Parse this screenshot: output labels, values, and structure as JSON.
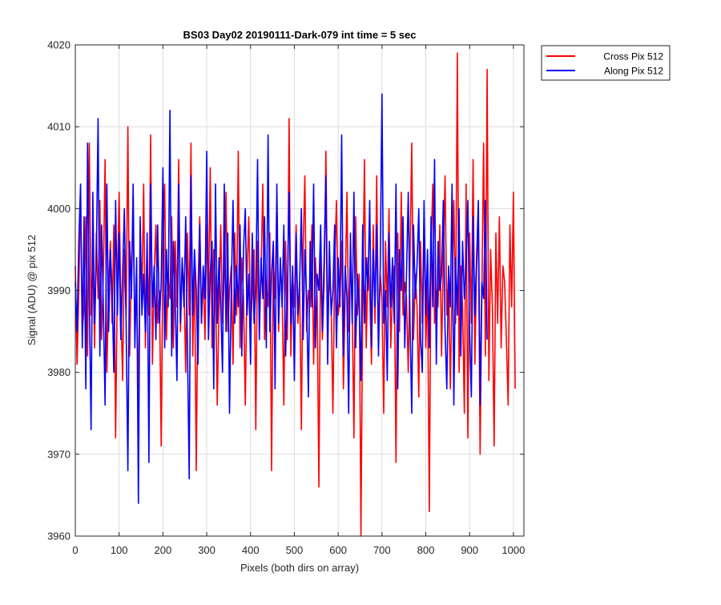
{
  "chart_data": {
    "type": "line",
    "title": "BS03 Day02 20190111-Dark-079 int time = 5 sec",
    "xlabel": "Pixels (both dirs on array)",
    "ylabel": "Signal (ADU) @ pix 512",
    "xlim": [
      0,
      1024
    ],
    "ylim": [
      3960,
      4020
    ],
    "xticks": [
      0,
      100,
      200,
      300,
      400,
      500,
      600,
      700,
      800,
      900,
      1000
    ],
    "yticks": [
      3960,
      3970,
      3980,
      3990,
      4000,
      4010,
      4020
    ],
    "grid": true,
    "legend": {
      "placement": "outside-top-right"
    },
    "colors": {
      "axes": "#262626",
      "grid": "#dcdcdc"
    },
    "series": [
      {
        "name": "Cross Pix 512",
        "color": "#ff0000",
        "step": 4,
        "values": [
          3993,
          3981,
          3990,
          4002,
          3985,
          3988,
          3999,
          3982,
          4008,
          3987,
          3994,
          3983,
          3997,
          3989,
          4001,
          3984,
          3992,
          4006,
          3980,
          3990,
          3996,
          3986,
          3998,
          3972,
          3991,
          4002,
          3988,
          3979,
          3995,
          3987,
          4010,
          3982,
          3993,
          3999,
          3985,
          3990,
          3976,
          3997,
          3989,
          4003,
          3983,
          3994,
          3987,
          4009,
          3981,
          3992,
          3998,
          3986,
          3990,
          3971,
          3995,
          4003,
          3984,
          3992,
          3989,
          3999,
          3983,
          3996,
          3988,
          4006,
          3985,
          3993,
          3991,
          3980,
          3997,
          3987,
          4008,
          3982,
          3994,
          3968,
          3990,
          3999,
          3986,
          3992,
          3984,
          3998,
          3989,
          4005,
          3983,
          3995,
          3991,
          3976,
          3988,
          3998,
          3986,
          3992,
          4002,
          3985,
          3990,
          3993,
          3981,
          3997,
          3987,
          4007,
          3983,
          3994,
          3989,
          3976,
          3992,
          3999,
          3985,
          3990,
          3995,
          3973,
          3996,
          3986,
          3992,
          4003,
          3984,
          3991,
          3988,
          3997,
          3968,
          3994,
          3989,
          4001,
          3985,
          3993,
          3990,
          3976,
          3996,
          3984,
          4011,
          3982,
          3992,
          3988,
          3998,
          3986,
          3991,
          3973,
          3995,
          4004,
          3985,
          3990,
          3988,
          3998,
          3981,
          3994,
          3989,
          3966,
          3996,
          3984,
          3991,
          4007,
          3986,
          3992,
          3988,
          3975,
          3993,
          4001,
          3987,
          3989,
          3996,
          3978,
          3990,
          4002,
          3985,
          3994,
          3988,
          3972,
          3999,
          3987,
          3992,
          3960,
          3989,
          4006,
          3983,
          3994,
          3990,
          3981,
          3998,
          3986,
          4004,
          3984,
          3992,
          3989,
          3975,
          3996,
          3988,
          4000,
          3983,
          3990,
          3993,
          3969,
          3997,
          3985,
          4002,
          3987,
          3991,
          3989,
          3980,
          3994,
          4008,
          3984,
          3992,
          3988,
          3977,
          3996,
          3986,
          3999,
          3983,
          3991,
          3963,
          3995,
          4003,
          3986,
          3990,
          3988,
          3998,
          3982,
          3994,
          4004,
          3987,
          3992,
          3978,
          3990,
          4001,
          3986,
          4019,
          3980,
          3993,
          3988,
          3975,
          4003,
          3972,
          3997,
          3986,
          4006,
          3981,
          3993,
          3998,
          3970,
          3990,
          4008,
          3982,
          4017,
          3979,
          3995,
          3988,
          3971,
          3997,
          3986,
          3999,
          3983,
          3993,
          3991,
          3984,
          3976,
          3998,
          3988,
          4002,
          3978
        ]
      },
      {
        "name": "Along Pix 512",
        "color": "#0000ff",
        "step": 4,
        "values": [
          3991,
          3985,
          3996,
          4003,
          3983,
          3999,
          3978,
          4008,
          3989,
          3973,
          4002,
          3986,
          3994,
          4011,
          3982,
          3998,
          3988,
          3976,
          4003,
          3985,
          3995,
          3990,
          3980,
          4001,
          3987,
          3997,
          3984,
          3992,
          4000,
          3986,
          3968,
          3996,
          3989,
          4003,
          3983,
          3994,
          3964,
          3999,
          3987,
          3992,
          3985,
          3997,
          3969,
          4003,
          3988,
          3993,
          3984,
          3998,
          3986,
          3991,
          4005,
          3983,
          3995,
          3988,
          4012,
          3982,
          3996,
          3989,
          3979,
          4003,
          3986,
          3994,
          3988,
          3999,
          3983,
          3967,
          4004,
          3987,
          3995,
          3990,
          3981,
          3998,
          3986,
          3993,
          3989,
          4007,
          3984,
          3992,
          3996,
          3978,
          4003,
          3986,
          3994,
          3988,
          3980,
          4003,
          3985,
          3997,
          3975,
          3990,
          4001,
          3986,
          3993,
          3988,
          3998,
          3982,
          3995,
          4000,
          3987,
          3992,
          3981,
          3997,
          3986,
          3990,
          4006,
          3984,
          3994,
          3989,
          3999,
          3983,
          4009,
          3985,
          3992,
          3996,
          3978,
          4003,
          3986,
          3994,
          3988,
          3998,
          3982,
          3990,
          4002,
          3986,
          3993,
          3979,
          3997,
          3987,
          3991,
          4000,
          3984,
          3995,
          3989,
          3977,
          3996,
          3988,
          4003,
          3983,
          3992,
          3990,
          3998,
          3985,
          3994,
          4004,
          3981,
          3996,
          3987,
          3990,
          3998,
          3983,
          3994,
          3988,
          4009,
          3982,
          3993,
          3989,
          3975,
          3997,
          3986,
          4002,
          3983,
          3992,
          3988,
          3979,
          3998,
          3986,
          3994,
          3990,
          4001,
          3983,
          3995,
          3988,
          3998,
          3982,
          3993,
          4014,
          3986,
          3990,
          3979,
          3997,
          3988,
          3994,
          3986,
          4003,
          3978,
          3995,
          3990,
          3999,
          3983,
          3992,
          4002,
          3986,
          3975,
          3998,
          3989,
          3993,
          4000,
          3984,
          3980,
          4001,
          3987,
          3995,
          3983,
          3999,
          3988,
          4006,
          3981,
          3996,
          3990,
          3992,
          4001,
          3985,
          3978,
          3993,
          3988,
          4003,
          3976,
          3994,
          3987,
          4000,
          3982,
          3996,
          3989,
          3993,
          4001,
          3985,
          3977,
          3999,
          3987,
          3994,
          4001,
          3976,
          3991,
          3989,
          4001,
          3984
        ]
      }
    ]
  }
}
